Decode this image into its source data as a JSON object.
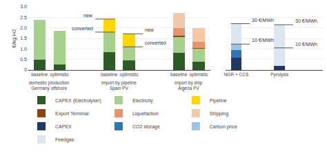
{
  "chart_data": [
    {
      "type": "bar",
      "stacked": true,
      "ylabel": "€/kg H2",
      "grid": true,
      "legend": "bottom",
      "groups": [
        {
          "label": "Germany offshore",
          "sublabel": "domestic production",
          "categories": [
            "baseline",
            "optimistic"
          ]
        },
        {
          "label": "Spain PV",
          "sublabel": "import by pipeline",
          "categories": [
            "baseline",
            "optimistic"
          ]
        },
        {
          "label": "Algeria PV",
          "sublabel": "import by ship",
          "categories": [
            "baseline",
            "optimistic"
          ]
        }
      ],
      "series": [
        {
          "name": "CAPEX (Electrolyser)",
          "color": "#2d5a27",
          "values": [
            0.48,
            0.25,
            0.85,
            0.45,
            0.8,
            0.4
          ]
        },
        {
          "name": "Electricity",
          "color": "#a8d08d",
          "values": [
            1.9,
            1.6,
            0.95,
            0.65,
            0.78,
            0.6
          ]
        },
        {
          "name": "Pipeline",
          "color": "#ffd700",
          "values": [
            null,
            null,
            0.62,
            0.62,
            null,
            null
          ]
        },
        {
          "name": "Export Terminal",
          "color": "#8b4513",
          "values": [
            null,
            null,
            null,
            null,
            0.06,
            0.04
          ]
        },
        {
          "name": "Liquefaction",
          "color": "#e8956d",
          "values": [
            null,
            null,
            null,
            null,
            0.36,
            0.3
          ]
        },
        {
          "name": "Shipping",
          "color": "#f4c9a8",
          "values": [
            null,
            null,
            null,
            null,
            0.7,
            0.66
          ]
        }
      ],
      "annotations": [
        {
          "bar": 2,
          "y": 1.8,
          "label": "converted",
          "side": "left"
        },
        {
          "bar": 2,
          "y": 2.42,
          "label": "new",
          "side": "left"
        },
        {
          "bar": 3,
          "y": 1.1,
          "label": "converted",
          "side": "right"
        },
        {
          "bar": 3,
          "y": 1.72,
          "label": "new",
          "side": "right"
        }
      ],
      "ylim": [
        0,
        3.0
      ],
      "yticks": [
        0,
        0.5,
        {
          "value": 1.0,
          "label": "1.0"
        },
        1.5,
        {
          "value": 2.0,
          "label": "2.0"
        },
        2.5,
        {
          "value": 3.0,
          "label": "3.0"
        }
      ]
    },
    {
      "type": "bar",
      "stacked": true,
      "grid": true,
      "legend": "bottom",
      "tick_labels": "x",
      "categories": [
        "NGR + CCS",
        "Pyrolysis"
      ],
      "series": [
        {
          "name": "CAPEX",
          "color": "#1f3864",
          "values": [
            0.6,
            0.2
          ]
        },
        {
          "name": "CO2 storage",
          "color": "#2e75b6",
          "values": [
            0.35,
            0.0
          ]
        },
        {
          "name": "Carbon price",
          "color": "#9dc3e6",
          "values": [
            0.28,
            0.0
          ]
        },
        {
          "name": "Feedgas",
          "color": "#dce6f1",
          "values": [
            0.97,
            1.95
          ]
        }
      ],
      "annotations": [
        {
          "bar": 0,
          "y": 1.23,
          "label": "10 €/MWh",
          "side": "right"
        },
        {
          "bar": 0,
          "y": 2.2,
          "label": "30 €/MWh",
          "side": "right"
        },
        {
          "bar": 1,
          "y": 1.05,
          "label": "10 €/MWh",
          "side": "right"
        },
        {
          "bar": 1,
          "y": 2.15,
          "label": "30 €/MWh",
          "side": "right"
        }
      ],
      "ylim": [
        0,
        3.0
      ],
      "yticks": [
        0,
        0.5,
        1.0,
        1.5,
        2.0,
        2.5,
        3.0
      ]
    }
  ]
}
